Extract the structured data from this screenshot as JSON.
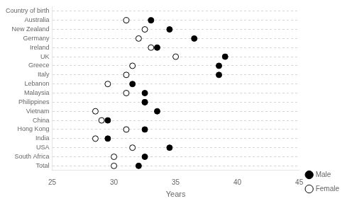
{
  "chart_data": {
    "type": "dot",
    "categories": [
      "Country of birth",
      "Australia",
      "New Zealand",
      "Germany",
      "Ireland",
      "UK",
      "Greece",
      "Italy",
      "Lebanon",
      "Malaysia",
      "Philippines",
      "Vietnam",
      "China",
      "Hong Kong",
      "India",
      "USA",
      "South Africa",
      "Total"
    ],
    "series": [
      {
        "name": "Male",
        "color": "black",
        "marker": "circle",
        "values": [
          null,
          33.0,
          34.5,
          36.5,
          33.5,
          39.0,
          38.5,
          38.5,
          31.5,
          32.5,
          32.5,
          33.5,
          29.5,
          32.5,
          29.5,
          34.5,
          32.5,
          32.0
        ]
      },
      {
        "name": "Female",
        "color": "white",
        "marker": "circle",
        "values": [
          null,
          31.0,
          32.5,
          32.0,
          33.0,
          35.0,
          31.5,
          31.0,
          29.5,
          31.0,
          32.5,
          28.5,
          29.0,
          31.0,
          28.5,
          31.5,
          30.0,
          30.0
        ]
      }
    ],
    "xlabel": "Years",
    "xlim": [
      25,
      45
    ],
    "xticks": [
      25,
      30,
      35,
      40,
      45
    ],
    "grid": true,
    "legend": "lower right"
  }
}
